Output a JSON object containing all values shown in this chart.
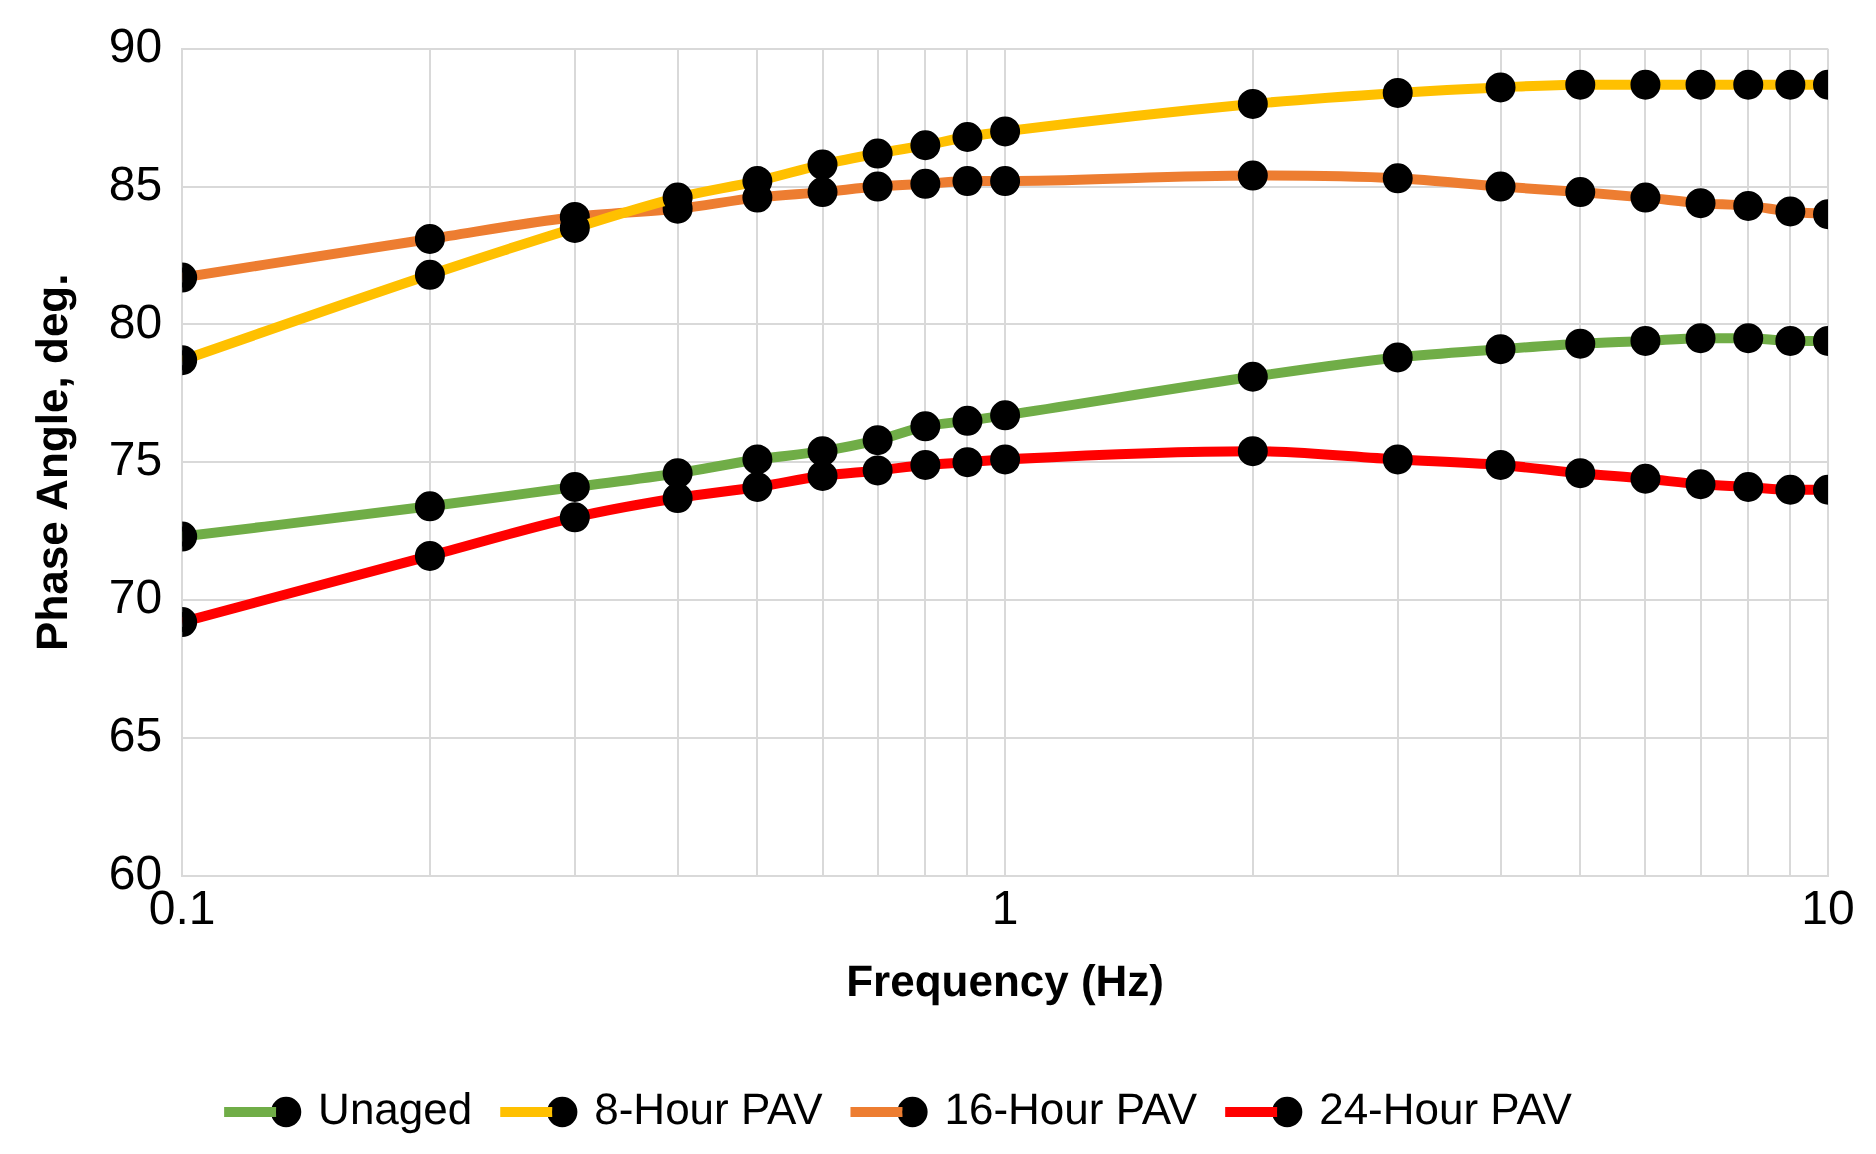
{
  "chart_data": {
    "type": "line",
    "xlabel": "Frequency (Hz)",
    "ylabel": "Phase Angle, deg.",
    "log": "x",
    "grid": true,
    "legend": "bottom",
    "marker": "circle",
    "line_style": "solid",
    "x": [
      0.1,
      0.2,
      0.3,
      0.4,
      0.5,
      0.6,
      0.7,
      0.8,
      0.9,
      1,
      2,
      3,
      4,
      5,
      6,
      7,
      8,
      9,
      10
    ],
    "xlim": [
      0.1,
      10
    ],
    "xticks": [
      0.1,
      {
        "value": 0.2,
        "label": null
      },
      {
        "value": 0.3,
        "label": null
      },
      {
        "value": 0.4,
        "label": null
      },
      {
        "value": 0.5,
        "label": null
      },
      {
        "value": 0.6,
        "label": null
      },
      {
        "value": 0.7,
        "label": null
      },
      {
        "value": 0.8,
        "label": null
      },
      {
        "value": 0.9,
        "label": null
      },
      1,
      {
        "value": 2,
        "label": null
      },
      {
        "value": 3,
        "label": null
      },
      {
        "value": 4,
        "label": null
      },
      {
        "value": 5,
        "label": null
      },
      {
        "value": 6,
        "label": null
      },
      {
        "value": 7,
        "label": null
      },
      {
        "value": 8,
        "label": null
      },
      {
        "value": 9,
        "label": null
      },
      10
    ],
    "ylim": [
      60,
      90
    ],
    "yticks": [
      60,
      65,
      70,
      75,
      80,
      85,
      90
    ],
    "series": [
      {
        "name": "Unaged",
        "color": "#70ad47",
        "values": [
          72.3,
          73.4,
          74.1,
          74.6,
          75.1,
          75.4,
          75.8,
          76.3,
          76.5,
          76.7,
          78.1,
          78.8,
          79.1,
          79.3,
          79.4,
          79.5,
          79.5,
          79.4,
          79.4
        ]
      },
      {
        "name": "8-Hour PAV",
        "color": "#ffc000",
        "values": [
          78.7,
          81.8,
          83.5,
          84.6,
          85.2,
          85.8,
          86.2,
          86.5,
          86.8,
          87.0,
          88.0,
          88.4,
          88.6,
          88.7,
          88.7,
          88.7,
          88.7,
          88.7,
          88.7
        ]
      },
      {
        "name": "16-Hour PAV",
        "color": "#ed7d31",
        "values": [
          81.7,
          83.1,
          83.9,
          84.2,
          84.6,
          84.8,
          85.0,
          85.1,
          85.2,
          85.2,
          85.4,
          85.3,
          85.0,
          84.8,
          84.6,
          84.4,
          84.3,
          84.1,
          84.0
        ]
      },
      {
        "name": "24-Hour PAV",
        "color": "#ff0000",
        "values": [
          69.2,
          71.6,
          73.0,
          73.7,
          74.1,
          74.5,
          74.7,
          74.9,
          75.0,
          75.1,
          75.4,
          75.1,
          74.9,
          74.6,
          74.4,
          74.2,
          74.1,
          74.0,
          74.0
        ]
      }
    ]
  }
}
